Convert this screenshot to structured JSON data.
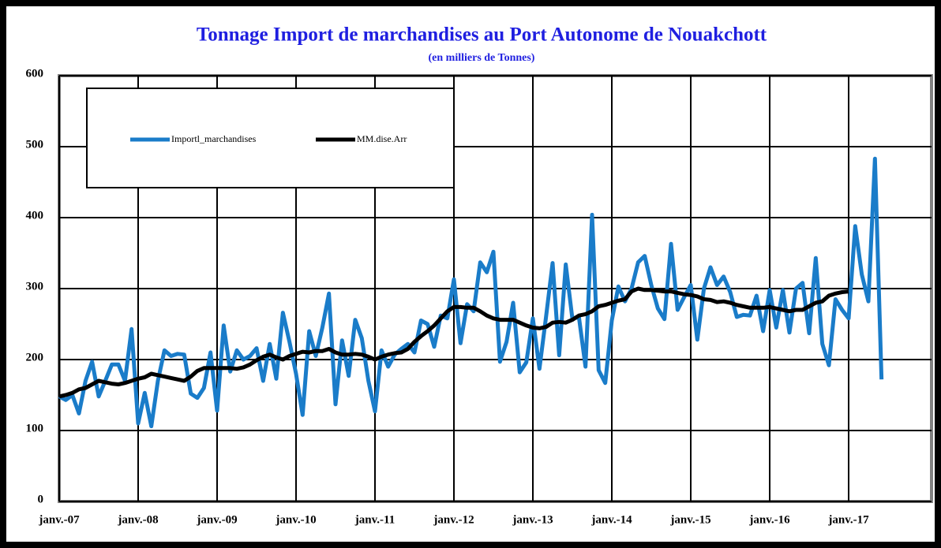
{
  "chart_data": {
    "type": "line",
    "title": "Tonnage Import de marchandises au Port Autonome de Nouakchott",
    "subtitle": "(en milliers de Tonnes)",
    "categories": [
      "janv.-07",
      null,
      null,
      null,
      null,
      null,
      null,
      null,
      null,
      null,
      null,
      null,
      "janv.-08",
      null,
      null,
      null,
      null,
      null,
      null,
      null,
      null,
      null,
      null,
      null,
      "janv.-09",
      null,
      null,
      null,
      null,
      null,
      null,
      null,
      null,
      null,
      null,
      null,
      "janv.-10",
      null,
      null,
      null,
      null,
      null,
      null,
      null,
      null,
      null,
      null,
      null,
      "janv.-11",
      null,
      null,
      null,
      null,
      null,
      null,
      null,
      null,
      null,
      null,
      null,
      "janv.-12",
      null,
      null,
      null,
      null,
      null,
      null,
      null,
      null,
      null,
      null,
      null,
      "janv.-13",
      null,
      null,
      null,
      null,
      null,
      null,
      null,
      null,
      null,
      null,
      null,
      "janv.-14",
      null,
      null,
      null,
      null,
      null,
      null,
      null,
      null,
      null,
      null,
      null,
      "janv.-15",
      null,
      null,
      null,
      null,
      null,
      null,
      null,
      null,
      null,
      null,
      null,
      "janv.-16",
      null,
      null,
      null,
      null,
      null,
      null,
      null,
      null,
      null,
      null,
      null,
      "janv.-17",
      null,
      null,
      null,
      null,
      null
    ],
    "series": [
      {
        "name": "Importl_marchandises",
        "color": "#1a7cc9",
        "values": [
          148,
          143,
          150,
          124,
          170,
          197,
          148,
          170,
          193,
          193,
          170,
          243,
          110,
          153,
          106,
          170,
          213,
          205,
          208,
          207,
          152,
          146,
          160,
          210,
          128,
          248,
          183,
          213,
          200,
          205,
          216,
          170,
          222,
          173,
          266,
          225,
          180,
          122,
          240,
          205,
          245,
          293,
          137,
          227,
          177,
          256,
          230,
          170,
          127,
          213,
          190,
          207,
          215,
          222,
          210,
          255,
          250,
          218,
          262,
          258,
          313,
          223,
          278,
          268,
          337,
          323,
          352,
          197,
          225,
          280,
          182,
          196,
          258,
          187,
          260,
          336,
          206,
          334,
          258,
          260,
          190,
          404,
          185,
          167,
          255,
          303,
          282,
          300,
          337,
          346,
          305,
          272,
          257,
          363,
          270,
          288,
          305,
          228,
          300,
          330,
          305,
          317,
          295,
          260,
          263,
          262,
          290,
          240,
          298,
          245,
          298,
          238,
          300,
          308,
          237,
          343,
          222,
          192,
          285,
          270,
          258,
          388,
          320,
          282,
          483,
          172
        ]
      },
      {
        "name": "MM.dise.Arr",
        "color": "#000000",
        "values": [
          148,
          150,
          153,
          158,
          160,
          165,
          170,
          168,
          166,
          165,
          167,
          170,
          173,
          175,
          180,
          178,
          176,
          174,
          172,
          170,
          176,
          184,
          188,
          188,
          188,
          188,
          188,
          187,
          189,
          193,
          199,
          204,
          207,
          203,
          200,
          205,
          208,
          211,
          210,
          212,
          212,
          215,
          210,
          207,
          207,
          208,
          207,
          204,
          200,
          204,
          207,
          209,
          210,
          215,
          225,
          233,
          240,
          248,
          258,
          268,
          274,
          274,
          273,
          273,
          268,
          262,
          258,
          256,
          256,
          256,
          252,
          248,
          245,
          244,
          246,
          252,
          253,
          252,
          256,
          262,
          264,
          268,
          275,
          277,
          280,
          283,
          285,
          296,
          300,
          298,
          298,
          297,
          296,
          296,
          294,
          292,
          291,
          289,
          285,
          284,
          281,
          282,
          280,
          277,
          275,
          273,
          273,
          273,
          274,
          272,
          270,
          268,
          270,
          270,
          275,
          280,
          282,
          290,
          293,
          295,
          296,
          null,
          null,
          null,
          null,
          null
        ]
      }
    ],
    "ylim": [
      0,
      600
    ],
    "yticks": [
      0,
      100,
      200,
      300,
      400,
      500,
      600
    ],
    "grid": true
  }
}
